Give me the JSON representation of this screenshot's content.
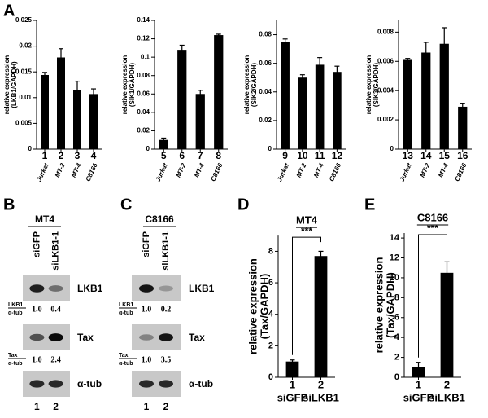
{
  "panel_labels": [
    "A",
    "B",
    "C",
    "D",
    "E"
  ],
  "chart_data": [
    {
      "type": "bar",
      "ylabel": [
        "relative expression",
        "(LKB1/GAPDH)"
      ],
      "categories": [
        "1",
        "2",
        "3",
        "4"
      ],
      "cell_lines": [
        "Jurkat",
        "MT-2",
        "MT-4",
        "C8166"
      ],
      "values": [
        0.0144,
        0.0178,
        0.0115,
        0.0107
      ],
      "errors": [
        0.0005,
        0.0017,
        0.0017,
        0.001
      ],
      "color": "#000000",
      "ylim": [
        0,
        0.025
      ],
      "yticks": [
        0,
        0.005,
        0.01,
        0.015,
        0.02,
        0.025
      ]
    },
    {
      "type": "bar",
      "ylabel": [
        "relative expression",
        "(SIK1/GAPDH)"
      ],
      "categories": [
        "5",
        "6",
        "7",
        "8"
      ],
      "cell_lines": [
        "Jurkat",
        "MT-2",
        "MT-4",
        "C8166"
      ],
      "values": [
        0.01,
        0.108,
        0.06,
        0.124
      ],
      "errors": [
        0.002,
        0.005,
        0.004,
        0.001
      ],
      "color": "#000000",
      "ylim": [
        0,
        0.14
      ],
      "yticks": [
        0,
        0.02,
        0.04,
        0.06,
        0.08,
        0.1,
        0.12,
        0.14
      ]
    },
    {
      "type": "bar",
      "ylabel": [
        "relative expression",
        "(SIK2/GAPDH)"
      ],
      "categories": [
        "9",
        "10",
        "11",
        "12"
      ],
      "cell_lines": [
        "Jurkat",
        "MT-2",
        "MT-4",
        "C8166"
      ],
      "values": [
        0.075,
        0.05,
        0.059,
        0.054
      ],
      "errors": [
        0.002,
        0.002,
        0.005,
        0.004
      ],
      "color": "#000000",
      "ylim": [
        0,
        0.09
      ],
      "yticks": [
        0,
        0.02,
        0.04,
        0.06,
        0.08
      ]
    },
    {
      "type": "bar",
      "ylabel": [
        "relative expression",
        "(SIK3/GAPDH)"
      ],
      "categories": [
        "13",
        "14",
        "15",
        "16"
      ],
      "cell_lines": [
        "Jurkat",
        "MT-2",
        "MT-4",
        "C8166"
      ],
      "values": [
        0.0061,
        0.0066,
        0.0072,
        0.0029
      ],
      "errors": [
        0.0001,
        0.0007,
        0.0011,
        0.0002
      ],
      "color": "#000000",
      "ylim": [
        0,
        0.0088
      ],
      "yticks": [
        0,
        0.002,
        0.004,
        0.006,
        0.008
      ]
    },
    {
      "type": "bar",
      "title": "MT4",
      "annotation": "***",
      "ylabel": [
        "relative expression",
        "(Tax/GAPDH)"
      ],
      "categories": [
        "1",
        "2"
      ],
      "cell_lines": [
        "siGFP",
        "siLKB1"
      ],
      "values": [
        1.0,
        7.7
      ],
      "errors": [
        0.1,
        0.3
      ],
      "color": "#000000",
      "ylim": [
        0,
        9
      ],
      "yticks": [
        0,
        2,
        4,
        6,
        8
      ]
    },
    {
      "type": "bar",
      "title": "C8166",
      "annotation": "***",
      "ylabel": [
        "relative expression",
        "(Tax/GAPDH)"
      ],
      "categories": [
        "1",
        "2"
      ],
      "cell_lines": [
        "siGFP",
        "siLKB1"
      ],
      "values": [
        1.0,
        10.5
      ],
      "errors": [
        0.5,
        1.1
      ],
      "color": "#000000",
      "ylim": [
        0,
        14.5
      ],
      "yticks": [
        0,
        2,
        4,
        6,
        8,
        10,
        12,
        14
      ]
    }
  ],
  "blots": [
    {
      "title": "MT4",
      "lanes": [
        "siGFP",
        "siLKB1-1"
      ],
      "rows": [
        "LKB1",
        "Tax",
        "α-tub"
      ],
      "ratios": [
        {
          "num": "LKB1",
          "den": "α-tub",
          "values": [
            "1.0",
            "0.4"
          ]
        },
        {
          "num": "Tax",
          "den": "α-tub",
          "values": [
            "1.0",
            "2.4"
          ]
        }
      ],
      "lane_numbers": [
        "1",
        "2"
      ]
    },
    {
      "title": "C8166",
      "lanes": [
        "siGFP",
        "siLKB1-1"
      ],
      "rows": [
        "LKB1",
        "Tax",
        "α-tub"
      ],
      "ratios": [
        {
          "num": "LKB1",
          "den": "α-tub",
          "values": [
            "1.0",
            "0.2"
          ]
        },
        {
          "num": "Tax",
          "den": "α-tub",
          "values": [
            "1.0",
            "3.5"
          ]
        }
      ],
      "lane_numbers": [
        "1",
        "2"
      ]
    }
  ]
}
